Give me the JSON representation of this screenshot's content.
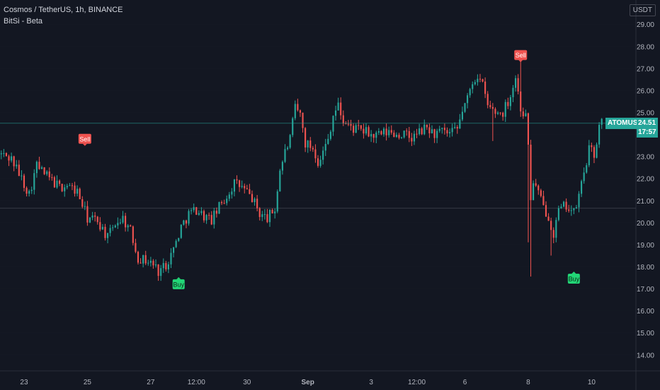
{
  "header": {
    "symbol_line": "Cosmos / TetherUS, 1h, BINANCE",
    "indicator_line": "BitSi - Beta"
  },
  "currency": "USDT",
  "colors": {
    "background": "#131722",
    "up": "#26a69a",
    "down": "#ef5350",
    "grid": "#1e222d",
    "axis_text": "#b2b5be",
    "sell_label": "#ef5350",
    "buy_label": "#22d576",
    "price_line": "#26a69a"
  },
  "last_price": {
    "symbol": "ATOMUSDT",
    "price": "24.51",
    "countdown": "17:57"
  },
  "chart_data": {
    "type": "candlestick",
    "symbol": "Cosmos / TetherUS",
    "interval": "1h",
    "exchange": "BINANCE",
    "indicator": "BitSi - Beta",
    "ylim": [
      13.3,
      30.1
    ],
    "y_ticks": [
      "14.00",
      "15.00",
      "16.00",
      "17.00",
      "18.00",
      "19.00",
      "20.00",
      "21.00",
      "22.00",
      "23.00",
      "24.00",
      "25.00",
      "26.00",
      "27.00",
      "28.00",
      "29.00"
    ],
    "x_ticks": [
      "23",
      "25",
      "27",
      "12:00",
      "30",
      "Sep",
      "3",
      "12:00",
      "6",
      "8",
      "10"
    ],
    "x_tick_pos": [
      5,
      30,
      55,
      73,
      93,
      117,
      142,
      160,
      179,
      204,
      229
    ],
    "x_range": [
      -4.5,
      246.5
    ],
    "reference_line": 20.65,
    "signals": [
      {
        "label": "Sell",
        "x": 29,
        "y": 23.8,
        "type": "sell"
      },
      {
        "label": "Buy",
        "x": 66,
        "y": 17.2,
        "type": "buy"
      },
      {
        "label": "Sell",
        "x": 201,
        "y": 27.6,
        "type": "sell"
      },
      {
        "label": "Buy",
        "x": 222,
        "y": 17.45,
        "type": "buy"
      }
    ],
    "path": [
      [
        -4,
        23.1
      ],
      [
        0,
        22.9
      ],
      [
        4,
        22.0
      ],
      [
        7,
        21.3
      ],
      [
        10,
        22.6
      ],
      [
        13,
        22.2
      ],
      [
        16,
        21.9
      ],
      [
        19,
        21.6
      ],
      [
        22,
        21.7
      ],
      [
        26,
        21.4
      ],
      [
        30,
        20.2
      ],
      [
        34,
        20.1
      ],
      [
        38,
        19.3
      ],
      [
        41,
        20.0
      ],
      [
        44,
        20.2
      ],
      [
        47,
        19.6
      ],
      [
        50,
        18.4
      ],
      [
        53,
        18.3
      ],
      [
        56,
        18.1
      ],
      [
        58,
        17.8
      ],
      [
        61,
        18.1
      ],
      [
        64,
        18.8
      ],
      [
        67,
        19.8
      ],
      [
        70,
        20.4
      ],
      [
        73,
        20.6
      ],
      [
        76,
        20.3
      ],
      [
        79,
        20.1
      ],
      [
        82,
        20.7
      ],
      [
        85,
        21.2
      ],
      [
        88,
        21.8
      ],
      [
        91,
        21.6
      ],
      [
        95,
        21.1
      ],
      [
        98,
        20.4
      ],
      [
        101,
        20.2
      ],
      [
        104,
        20.6
      ],
      [
        106,
        22.4
      ],
      [
        108,
        23.2
      ],
      [
        110,
        23.8
      ],
      [
        112,
        25.2
      ],
      [
        114,
        24.9
      ],
      [
        116,
        23.6
      ],
      [
        119,
        23.4
      ],
      [
        121,
        22.8
      ],
      [
        123,
        23.2
      ],
      [
        125,
        23.8
      ],
      [
        127,
        24.9
      ],
      [
        129,
        25.3
      ],
      [
        131,
        24.6
      ],
      [
        134,
        24.3
      ],
      [
        137,
        24.2
      ],
      [
        140,
        24.1
      ],
      [
        143,
        23.9
      ],
      [
        146,
        24.0
      ],
      [
        149,
        24.1
      ],
      [
        152,
        24.0
      ],
      [
        155,
        24.0
      ],
      [
        158,
        23.8
      ],
      [
        161,
        24.1
      ],
      [
        164,
        24.3
      ],
      [
        167,
        24.0
      ],
      [
        170,
        24.1
      ],
      [
        173,
        24.0
      ],
      [
        176,
        24.2
      ],
      [
        178,
        25.1
      ],
      [
        180,
        25.6
      ],
      [
        182,
        26.4
      ],
      [
        184,
        26.7
      ],
      [
        186,
        26.2
      ],
      [
        188,
        25.3
      ],
      [
        191,
        25.0
      ],
      [
        194,
        25.0
      ],
      [
        197,
        25.8
      ],
      [
        199,
        26.6
      ],
      [
        201,
        25.2
      ],
      [
        203,
        24.8
      ],
      [
        204,
        23.6
      ],
      [
        205,
        21.0
      ],
      [
        206,
        21.9
      ],
      [
        208,
        21.3
      ],
      [
        210,
        20.7
      ],
      [
        212,
        20.3
      ],
      [
        214,
        19.5
      ],
      [
        216,
        20.5
      ],
      [
        219,
        20.8
      ],
      [
        222,
        20.4
      ],
      [
        224,
        21.2
      ],
      [
        226,
        22.3
      ],
      [
        228,
        23.3
      ],
      [
        230,
        23.1
      ],
      [
        232,
        24.3
      ],
      [
        233,
        24.6
      ]
    ]
  }
}
